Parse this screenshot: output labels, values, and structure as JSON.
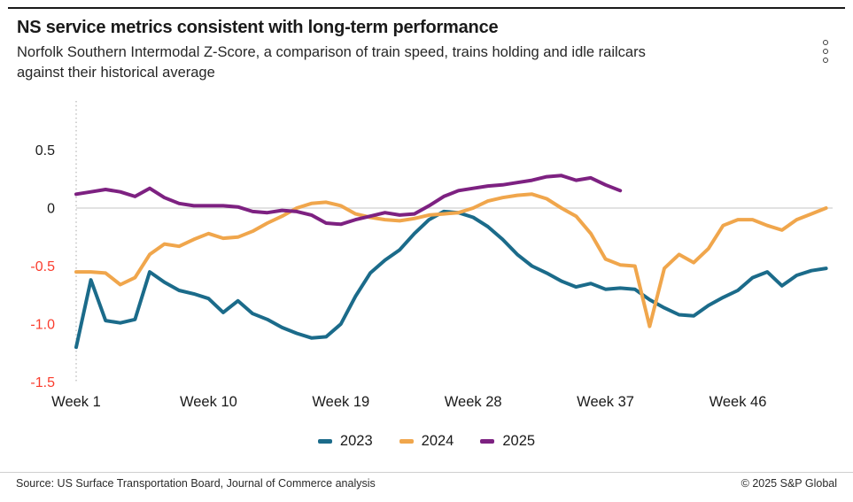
{
  "header": {
    "title": "NS service metrics consistent with long-term performance",
    "subtitle_line1": "Norfolk Southern Intermodal Z-Score, a comparison of train speed, trains holding and idle railcars",
    "subtitle_line2": "against their historical average",
    "menu_icon": "kebab-menu-icon"
  },
  "footer": {
    "source": "Source: US Surface Transportation Board, Journal of Commerce analysis",
    "copyright": "© 2025 S&P Global"
  },
  "colors": {
    "teal_2023": "#1b6b8a",
    "orange_2024": "#f0a64c",
    "purple_2025": "#7d2181",
    "negative_tick_red": "#fa3c2d",
    "zero_line_gray": "#d9d9d9",
    "dotted_line_gray": "#bfbfbf",
    "text_dark": "#1a1a1a"
  },
  "chart_data": {
    "type": "line",
    "title": "NS service metrics consistent with long-term performance",
    "xlabel": "",
    "ylabel": "Z-Score",
    "x_unit": "week",
    "x_range": [
      1,
      52
    ],
    "ylim": [
      -1.5,
      0.6
    ],
    "grid": "zero-line-only",
    "legend_position": "bottom-center",
    "x_tick_weeks": [
      1,
      10,
      19,
      28,
      37,
      46
    ],
    "x_tick_labels": [
      "Week 1",
      "Week 10",
      "Week 19",
      "Week 28",
      "Week 37",
      "Week 46"
    ],
    "y_ticks": [
      {
        "value": 0.5,
        "label": "0.5",
        "color": "#1a1a1a"
      },
      {
        "value": 0,
        "label": "0",
        "color": "#1a1a1a"
      },
      {
        "value": -0.5,
        "label": "-0.5",
        "color": "#fa3c2d"
      },
      {
        "value": -1.0,
        "label": "-1.0",
        "color": "#fa3c2d"
      },
      {
        "value": -1.5,
        "label": "-1.5",
        "color": "#fa3c2d"
      }
    ],
    "series": [
      {
        "name": "2023",
        "color": "#1b6b8a",
        "start_week": 1,
        "values": [
          -1.2,
          -0.62,
          -0.97,
          -0.99,
          -0.96,
          -0.55,
          -0.64,
          -0.71,
          -0.74,
          -0.78,
          -0.9,
          -0.8,
          -0.91,
          -0.96,
          -1.03,
          -1.08,
          -1.12,
          -1.11,
          -1.0,
          -0.76,
          -0.56,
          -0.45,
          -0.36,
          -0.22,
          -0.1,
          -0.03,
          -0.04,
          -0.08,
          -0.16,
          -0.27,
          -0.4,
          -0.5,
          -0.56,
          -0.63,
          -0.68,
          -0.65,
          -0.7,
          -0.69,
          -0.7,
          -0.79,
          -0.86,
          -0.92,
          -0.93,
          -0.84,
          -0.77,
          -0.71,
          -0.6,
          -0.55,
          -0.67,
          -0.58,
          -0.54,
          -0.52
        ]
      },
      {
        "name": "2024",
        "color": "#f0a64c",
        "start_week": 1,
        "values": [
          -0.55,
          -0.55,
          -0.56,
          -0.66,
          -0.6,
          -0.4,
          -0.31,
          -0.33,
          -0.27,
          -0.22,
          -0.26,
          -0.25,
          -0.2,
          -0.13,
          -0.07,
          0.0,
          0.04,
          0.05,
          0.02,
          -0.05,
          -0.08,
          -0.1,
          -0.11,
          -0.09,
          -0.06,
          -0.05,
          -0.04,
          0.0,
          0.06,
          0.09,
          0.11,
          0.12,
          0.08,
          0.0,
          -0.07,
          -0.22,
          -0.44,
          -0.49,
          -0.5,
          -1.02,
          -0.52,
          -0.4,
          -0.47,
          -0.35,
          -0.15,
          -0.1,
          -0.1,
          -0.15,
          -0.19,
          -0.1,
          -0.05,
          0.0
        ]
      },
      {
        "name": "2025",
        "color": "#7d2181",
        "start_week": 1,
        "values": [
          0.12,
          0.14,
          0.16,
          0.14,
          0.1,
          0.17,
          0.09,
          0.04,
          0.02,
          0.02,
          0.02,
          0.01,
          -0.03,
          -0.04,
          -0.02,
          -0.03,
          -0.06,
          -0.13,
          -0.14,
          -0.1,
          -0.07,
          -0.04,
          -0.06,
          -0.05,
          0.02,
          0.1,
          0.15,
          0.17,
          0.19,
          0.2,
          0.22,
          0.24,
          0.27,
          0.28,
          0.24,
          0.26,
          0.2,
          0.15
        ]
      }
    ]
  }
}
